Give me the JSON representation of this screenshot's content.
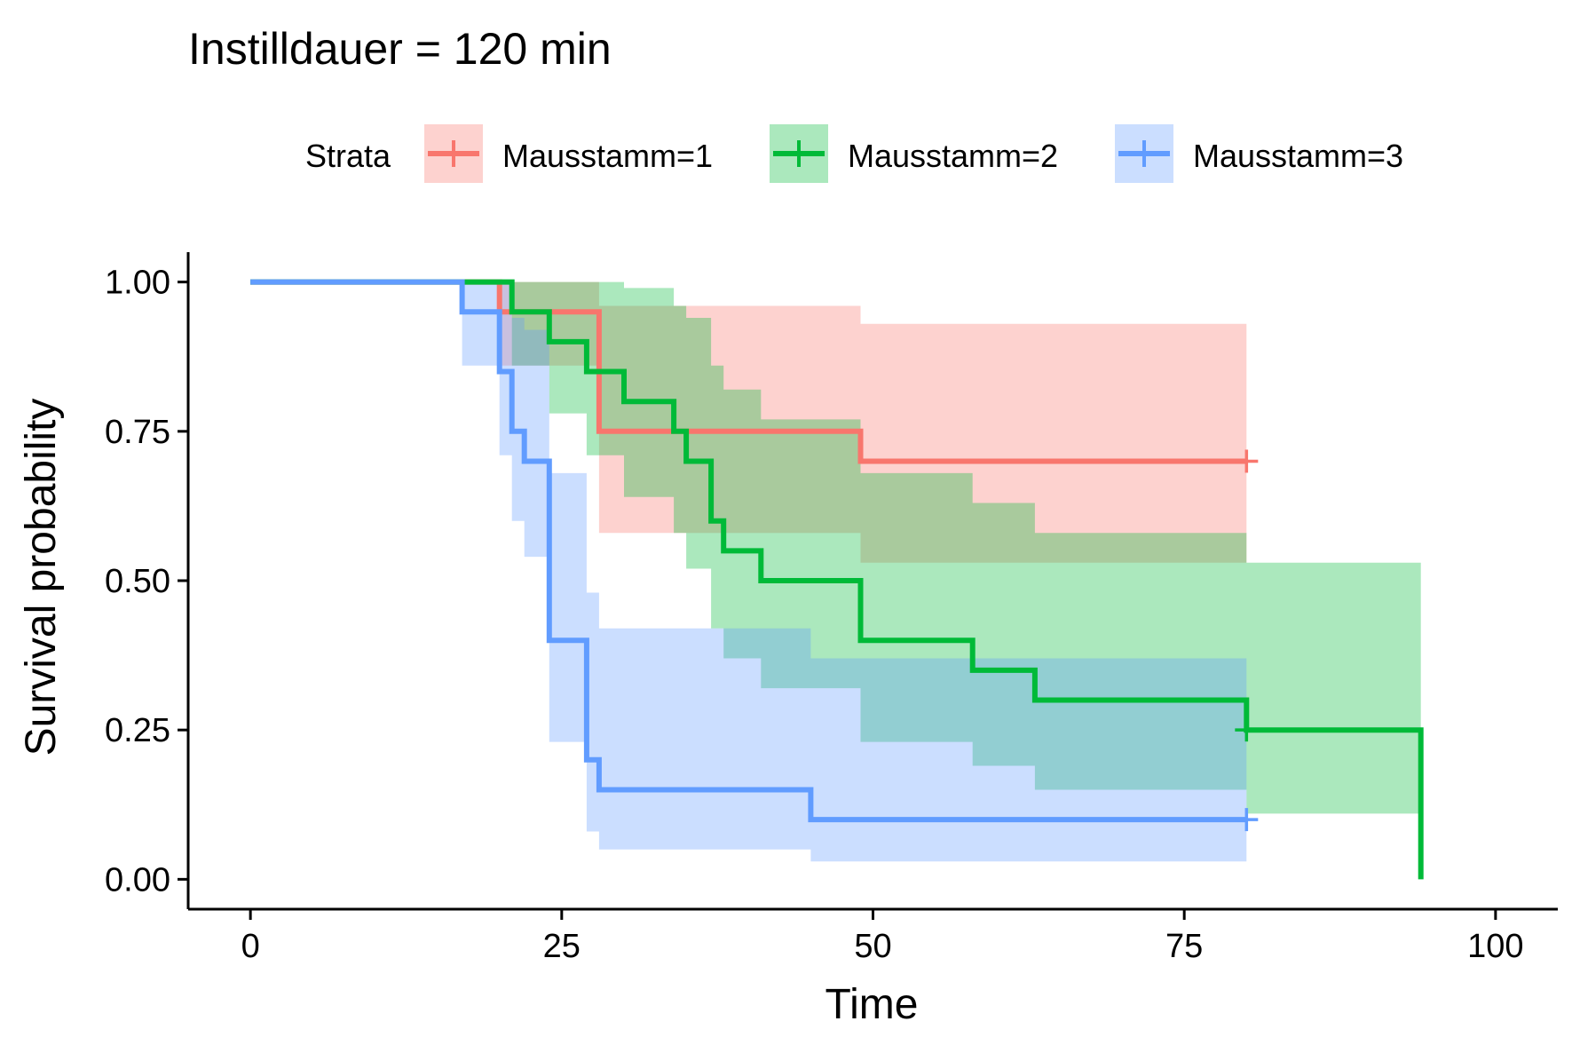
{
  "chart_data": {
    "type": "line",
    "subtype": "kaplan-meier",
    "title": "Instilldauer = 120 min",
    "xlabel": "Time",
    "ylabel": "Survival probability",
    "xlim": [
      -5,
      105
    ],
    "ylim": [
      -0.05,
      1.05
    ],
    "x_ticks": [
      0,
      25,
      50,
      75,
      100
    ],
    "x_tick_labels": [
      "0",
      "25",
      "50",
      "75",
      "100"
    ],
    "y_ticks": [
      0,
      0.25,
      0.5,
      0.75,
      1
    ],
    "y_tick_labels": [
      "0.00",
      "0.25",
      "0.50",
      "0.75",
      "1.00"
    ],
    "grid": false,
    "legend": {
      "title": "Strata",
      "position": "top"
    },
    "series": [
      {
        "name": "Mausstamm=1",
        "color": "#F8766D",
        "steps": [
          [
            0,
            1.0
          ],
          [
            20,
            0.95
          ],
          [
            28,
            0.75
          ],
          [
            49,
            0.7
          ]
        ],
        "end_time": 80,
        "censored": [
          [
            80,
            0.7
          ]
        ],
        "ci": [
          [
            0,
            1.0,
            1.0
          ],
          [
            20,
            0.86,
            1.0
          ],
          [
            28,
            0.58,
            0.96
          ],
          [
            34,
            0.58,
            0.96
          ],
          [
            49,
            0.53,
            0.93
          ]
        ]
      },
      {
        "name": "Mausstamm=2",
        "color": "#00BA38",
        "steps": [
          [
            0,
            1.0
          ],
          [
            21,
            0.95
          ],
          [
            24,
            0.9
          ],
          [
            27,
            0.85
          ],
          [
            30,
            0.8
          ],
          [
            34,
            0.75
          ],
          [
            35,
            0.7
          ],
          [
            37,
            0.6
          ],
          [
            38,
            0.55
          ],
          [
            41,
            0.5
          ],
          [
            49,
            0.4
          ],
          [
            58,
            0.35
          ],
          [
            63,
            0.3
          ],
          [
            80,
            0.25
          ],
          [
            94,
            0.0
          ]
        ],
        "end_time": 94,
        "censored": [
          [
            80,
            0.25
          ]
        ],
        "ci": [
          [
            0,
            1.0,
            1.0
          ],
          [
            21,
            0.86,
            1.0
          ],
          [
            24,
            0.78,
            1.0
          ],
          [
            27,
            0.71,
            1.0
          ],
          [
            30,
            0.64,
            0.99
          ],
          [
            34,
            0.58,
            0.96
          ],
          [
            35,
            0.52,
            0.94
          ],
          [
            37,
            0.42,
            0.86
          ],
          [
            38,
            0.37,
            0.82
          ],
          [
            41,
            0.32,
            0.77
          ],
          [
            49,
            0.23,
            0.68
          ],
          [
            58,
            0.19,
            0.63
          ],
          [
            63,
            0.15,
            0.58
          ],
          [
            80,
            0.11,
            0.53
          ]
        ]
      },
      {
        "name": "Mausstamm=3",
        "color": "#619CFF",
        "steps": [
          [
            0,
            1.0
          ],
          [
            17,
            0.95
          ],
          [
            20,
            0.85
          ],
          [
            21,
            0.75
          ],
          [
            22,
            0.7
          ],
          [
            24,
            0.4
          ],
          [
            27,
            0.2
          ],
          [
            28,
            0.15
          ],
          [
            45,
            0.1
          ]
        ],
        "end_time": 80,
        "censored": [
          [
            80,
            0.1
          ]
        ],
        "ci": [
          [
            0,
            1.0,
            1.0
          ],
          [
            17,
            0.86,
            1.0
          ],
          [
            20,
            0.71,
            1.0
          ],
          [
            21,
            0.6,
            0.94
          ],
          [
            22,
            0.54,
            0.92
          ],
          [
            24,
            0.23,
            0.68
          ],
          [
            27,
            0.08,
            0.48
          ],
          [
            28,
            0.05,
            0.42
          ],
          [
            45,
            0.03,
            0.37
          ]
        ]
      }
    ]
  }
}
